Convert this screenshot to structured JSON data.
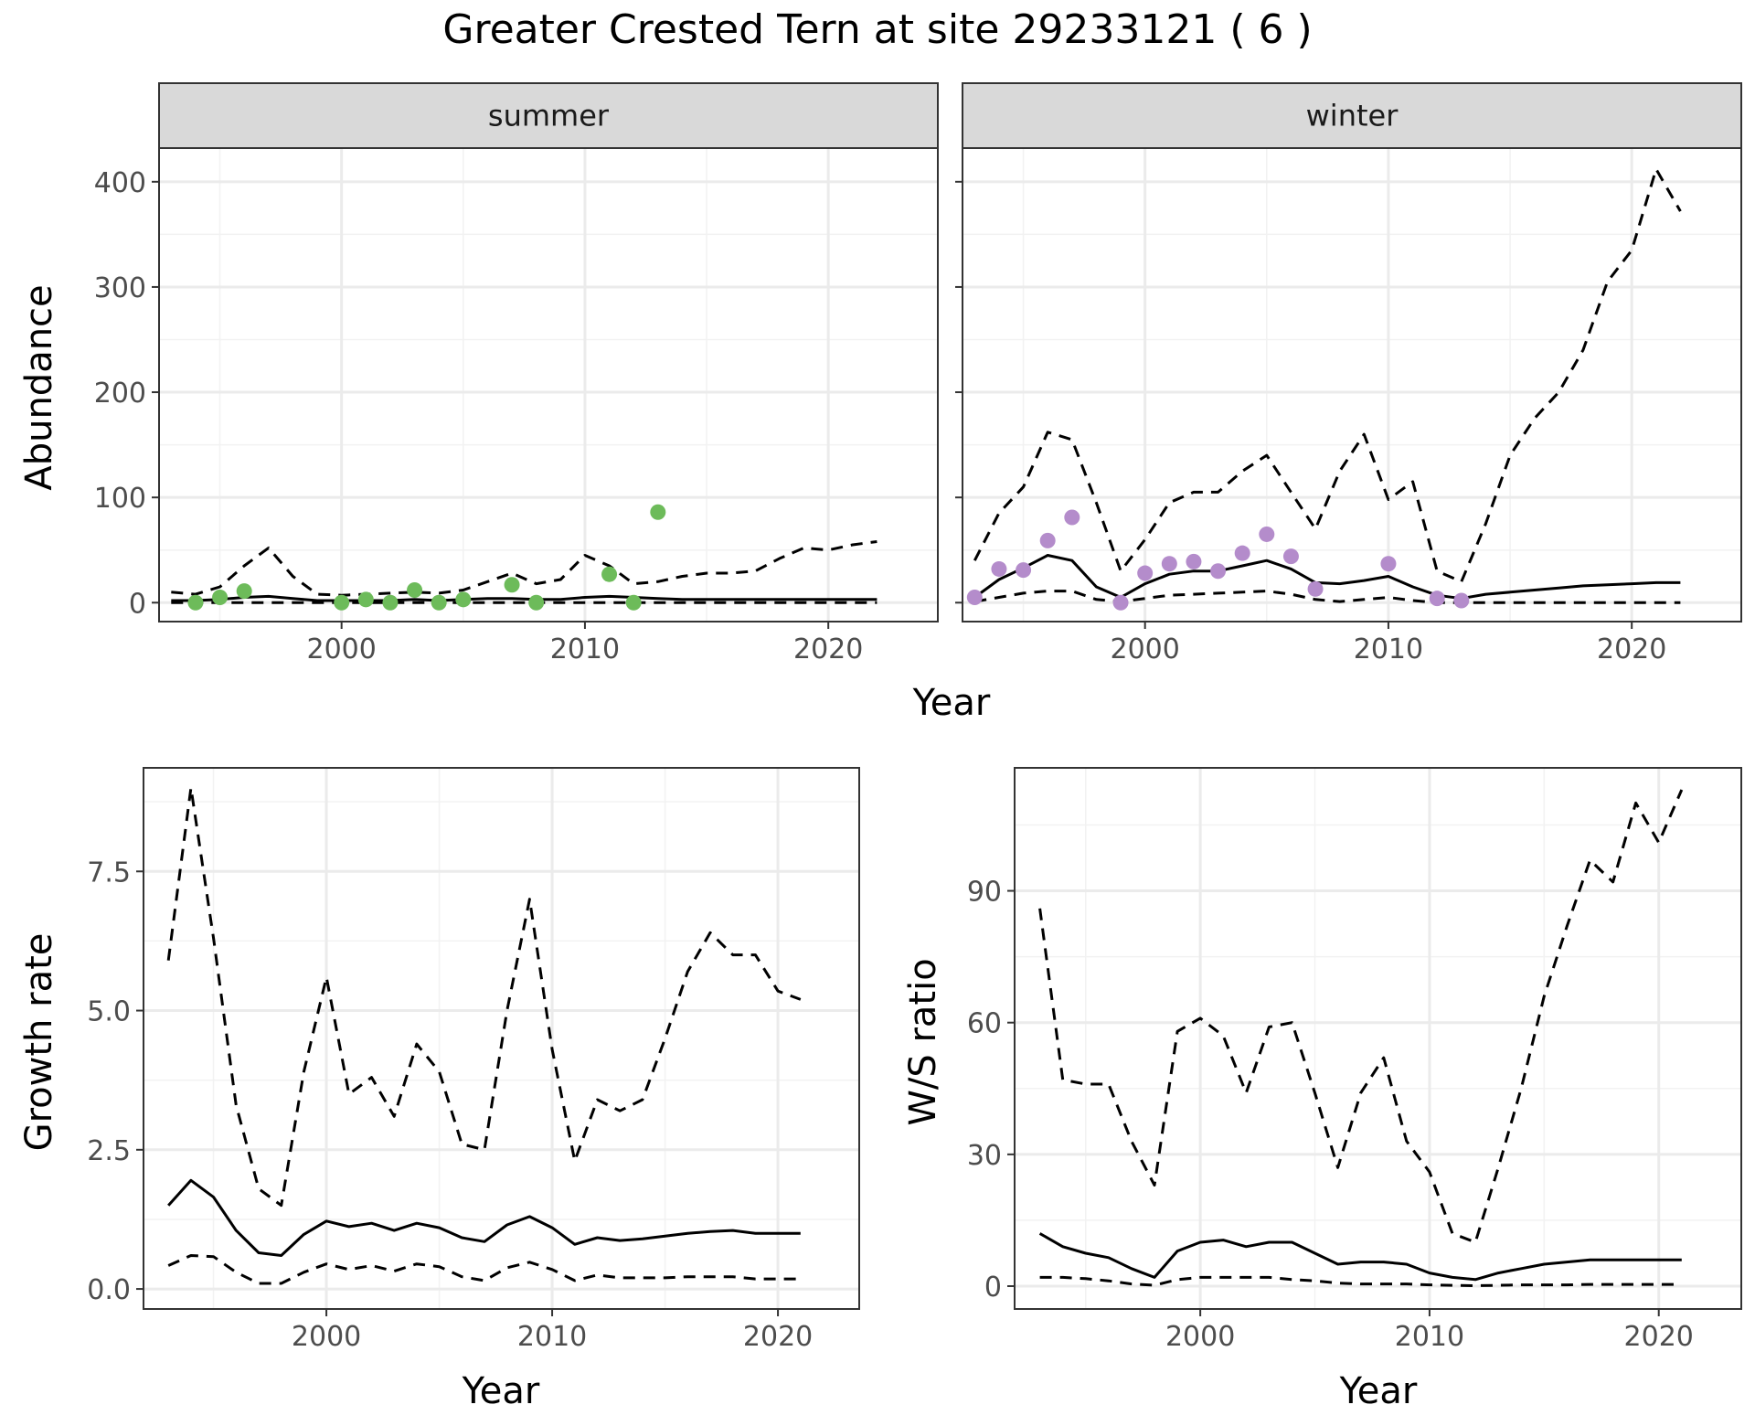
{
  "figure": {
    "title": "Greater Crested Tern at site 29233121 ( 6 )"
  },
  "chart_data": [
    {
      "type": "line",
      "panel": "summer",
      "strip_label": "summer",
      "ylabel": "Abundance",
      "xlabel": "Year",
      "xlim": [
        1992.5,
        2024.5
      ],
      "ylim": [
        -18,
        432
      ],
      "x_ticks": [
        2000,
        2010,
        2020
      ],
      "y_ticks": [
        0,
        100,
        200,
        300,
        400
      ],
      "grid": true,
      "point_color": "#6dbb5a",
      "observed": {
        "x": [
          1994,
          1995,
          1996,
          2000,
          2001,
          2002,
          2003,
          2004,
          2005,
          2007,
          2008,
          2011,
          2012,
          2013
        ],
        "y": [
          0,
          5,
          11,
          0,
          3,
          0,
          12,
          0,
          3,
          17,
          0,
          27,
          0,
          86
        ]
      },
      "series": [
        {
          "style": "solid",
          "x": [
            1993,
            1994,
            1995,
            1996,
            1997,
            1998,
            1999,
            2000,
            2001,
            2002,
            2003,
            2004,
            2005,
            2006,
            2007,
            2008,
            2009,
            2010,
            2011,
            2012,
            2013,
            2014,
            2015,
            2016,
            2017,
            2018,
            2019,
            2020,
            2021,
            2022
          ],
          "y": [
            2,
            2,
            3,
            5,
            6,
            4,
            2,
            2,
            2,
            2,
            3,
            2,
            3,
            4,
            4,
            3,
            3,
            5,
            6,
            5,
            4,
            3,
            3,
            3,
            3,
            3,
            3,
            3,
            3,
            3
          ]
        },
        {
          "style": "dashed",
          "x": [
            1993,
            1994,
            1995,
            1996,
            1997,
            1998,
            1999,
            2000,
            2001,
            2002,
            2003,
            2004,
            2005,
            2006,
            2007,
            2008,
            2009,
            2010,
            2011,
            2012,
            2013,
            2014,
            2015,
            2016,
            2017,
            2018,
            2019,
            2020,
            2021,
            2022
          ],
          "y": [
            10,
            8,
            15,
            35,
            52,
            25,
            8,
            7,
            8,
            9,
            10,
            9,
            12,
            20,
            28,
            18,
            22,
            45,
            35,
            18,
            20,
            25,
            28,
            28,
            30,
            42,
            52,
            50,
            55,
            58
          ]
        },
        {
          "style": "dashed",
          "x": [
            1993,
            1994,
            1995,
            1996,
            1997,
            1998,
            1999,
            2000,
            2001,
            2002,
            2003,
            2004,
            2005,
            2006,
            2007,
            2008,
            2009,
            2010,
            2011,
            2012,
            2013,
            2014,
            2015,
            2016,
            2017,
            2018,
            2019,
            2020,
            2021,
            2022
          ],
          "y": [
            0,
            0,
            0,
            0,
            0,
            0,
            0,
            0,
            0,
            0,
            0,
            0,
            0,
            0,
            0,
            0,
            0,
            0,
            0,
            0,
            0,
            0,
            0,
            0,
            0,
            0,
            0,
            0,
            0,
            0
          ]
        }
      ]
    },
    {
      "type": "line",
      "panel": "winter",
      "strip_label": "winter",
      "ylabel": "",
      "xlabel": "Year",
      "xlim": [
        1992.5,
        2024.5
      ],
      "ylim": [
        -18,
        432
      ],
      "x_ticks": [
        2000,
        2010,
        2020
      ],
      "y_ticks": [
        0,
        100,
        200,
        300,
        400
      ],
      "grid": true,
      "point_color": "#b48ccb",
      "observed": {
        "x": [
          1993,
          1994,
          1995,
          1996,
          1997,
          1999,
          2000,
          2001,
          2002,
          2003,
          2004,
          2005,
          2006,
          2007,
          2010,
          2012,
          2013
        ],
        "y": [
          5,
          32,
          31,
          59,
          81,
          0,
          28,
          37,
          39,
          30,
          47,
          65,
          44,
          13,
          37,
          4,
          2
        ]
      },
      "series": [
        {
          "style": "solid",
          "x": [
            1993,
            1994,
            1995,
            1996,
            1997,
            1998,
            1999,
            2000,
            2001,
            2002,
            2003,
            2004,
            2005,
            2006,
            2007,
            2008,
            2009,
            2010,
            2011,
            2012,
            2013,
            2014,
            2015,
            2016,
            2017,
            2018,
            2019,
            2020,
            2021,
            2022
          ],
          "y": [
            5,
            22,
            33,
            45,
            40,
            15,
            5,
            18,
            27,
            30,
            30,
            35,
            40,
            32,
            19,
            18,
            21,
            25,
            15,
            7,
            4,
            8,
            10,
            12,
            14,
            16,
            17,
            18,
            19,
            19
          ]
        },
        {
          "style": "dashed",
          "x": [
            1993,
            1994,
            1995,
            1996,
            1997,
            1998,
            1999,
            2000,
            2001,
            2002,
            2003,
            2004,
            2005,
            2006,
            2007,
            2008,
            2009,
            2010,
            2011,
            2012,
            2013,
            2014,
            2015,
            2016,
            2017,
            2018,
            2019,
            2020,
            2021,
            2022
          ],
          "y": [
            40,
            85,
            110,
            162,
            155,
            95,
            30,
            60,
            95,
            105,
            105,
            125,
            140,
            105,
            70,
            125,
            160,
            98,
            115,
            30,
            20,
            75,
            140,
            175,
            200,
            240,
            305,
            335,
            412,
            372
          ]
        },
        {
          "style": "dashed",
          "x": [
            1993,
            1994,
            1995,
            1996,
            1997,
            1998,
            1999,
            2000,
            2001,
            2002,
            2003,
            2004,
            2005,
            2006,
            2007,
            2008,
            2009,
            2010,
            2011,
            2012,
            2013,
            2014,
            2015,
            2016,
            2017,
            2018,
            2019,
            2020,
            2021,
            2022
          ],
          "y": [
            1,
            5,
            9,
            11,
            11,
            3,
            1,
            4,
            7,
            8,
            9,
            10,
            11,
            8,
            3,
            1,
            3,
            5,
            2,
            0,
            0,
            0,
            0,
            0,
            0,
            0,
            0,
            0,
            0,
            0
          ]
        }
      ]
    },
    {
      "type": "line",
      "panel": "growth",
      "ylabel": "Growth rate",
      "xlabel": "Year",
      "xlim": [
        1991.9,
        2023.6
      ],
      "ylim": [
        -0.36,
        9.36
      ],
      "x_ticks": [
        2000,
        2010,
        2020
      ],
      "y_ticks": [
        0,
        2.5,
        5,
        7.5
      ],
      "y_tick_labels": [
        "0.0",
        "2.5",
        "5.0",
        "7.5"
      ],
      "grid": true,
      "series": [
        {
          "style": "solid",
          "x": [
            1993,
            1994,
            1995,
            1996,
            1997,
            1998,
            1999,
            2000,
            2001,
            2002,
            2003,
            2004,
            2005,
            2006,
            2007,
            2008,
            2009,
            2010,
            2011,
            2012,
            2013,
            2014,
            2015,
            2016,
            2017,
            2018,
            2019,
            2020,
            2021
          ],
          "y": [
            1.5,
            1.95,
            1.65,
            1.05,
            0.65,
            0.6,
            0.98,
            1.22,
            1.12,
            1.18,
            1.05,
            1.18,
            1.1,
            0.92,
            0.85,
            1.15,
            1.3,
            1.1,
            0.8,
            0.92,
            0.87,
            0.9,
            0.95,
            1.0,
            1.03,
            1.05,
            1.0,
            1.0,
            1.0
          ]
        },
        {
          "style": "dashed",
          "x": [
            1993,
            1994,
            1995,
            1996,
            1997,
            1998,
            1999,
            2000,
            2001,
            2002,
            2003,
            2004,
            2005,
            2006,
            2007,
            2008,
            2009,
            2010,
            2011,
            2012,
            2013,
            2014,
            2015,
            2016,
            2017,
            2018,
            2019,
            2020,
            2021
          ],
          "y": [
            5.9,
            9.0,
            6.3,
            3.3,
            1.8,
            1.5,
            3.9,
            5.6,
            3.5,
            3.8,
            3.1,
            4.4,
            3.9,
            2.6,
            2.5,
            5.0,
            7.0,
            4.3,
            2.3,
            3.4,
            3.2,
            3.4,
            4.5,
            5.7,
            6.4,
            6.0,
            6.0,
            5.35,
            5.2
          ]
        },
        {
          "style": "dashed",
          "x": [
            1993,
            1994,
            1995,
            1996,
            1997,
            1998,
            1999,
            2000,
            2001,
            2002,
            2003,
            2004,
            2005,
            2006,
            2007,
            2008,
            2009,
            2010,
            2011,
            2012,
            2013,
            2014,
            2015,
            2016,
            2017,
            2018,
            2019,
            2020,
            2021
          ],
          "y": [
            0.42,
            0.6,
            0.58,
            0.3,
            0.1,
            0.1,
            0.3,
            0.45,
            0.35,
            0.42,
            0.32,
            0.45,
            0.4,
            0.22,
            0.15,
            0.38,
            0.48,
            0.35,
            0.15,
            0.25,
            0.2,
            0.2,
            0.2,
            0.22,
            0.22,
            0.22,
            0.18,
            0.18,
            0.18
          ]
        }
      ]
    },
    {
      "type": "line",
      "panel": "ratio",
      "ylabel": "W/S ratio",
      "xlabel": "Year",
      "xlim": [
        1991.9,
        2023.6
      ],
      "ylim": [
        -5.2,
        118
      ],
      "x_ticks": [
        2000,
        2010,
        2020
      ],
      "y_ticks": [
        0,
        30,
        60,
        90
      ],
      "grid": true,
      "series": [
        {
          "style": "solid",
          "x": [
            1993,
            1994,
            1995,
            1996,
            1997,
            1998,
            1999,
            2000,
            2001,
            2002,
            2003,
            2004,
            2005,
            2006,
            2007,
            2008,
            2009,
            2010,
            2011,
            2012,
            2013,
            2014,
            2015,
            2016,
            2017,
            2018,
            2019,
            2020,
            2021
          ],
          "y": [
            12,
            9,
            7.5,
            6.5,
            4,
            2,
            8,
            10,
            10.5,
            9,
            10,
            10,
            7.5,
            5,
            5.5,
            5.5,
            5,
            3,
            2,
            1.5,
            3,
            4,
            5,
            5.5,
            6,
            6,
            6,
            6,
            6
          ]
        },
        {
          "style": "dashed",
          "x": [
            1993,
            1994,
            1995,
            1996,
            1997,
            1998,
            1999,
            2000,
            2001,
            2002,
            2003,
            2004,
            2005,
            2006,
            2007,
            2008,
            2009,
            2010,
            2011,
            2012,
            2013,
            2014,
            2015,
            2016,
            2017,
            2018,
            2019,
            2020,
            2021
          ],
          "y": [
            86,
            47,
            46,
            46,
            33,
            23,
            58,
            61,
            57,
            44,
            59,
            60,
            44,
            27,
            44,
            52,
            33,
            26,
            12,
            10,
            27,
            45,
            66,
            82,
            97,
            92,
            110,
            101,
            113
          ]
        },
        {
          "style": "dashed",
          "x": [
            1993,
            1994,
            1995,
            1996,
            1997,
            1998,
            1999,
            2000,
            2001,
            2002,
            2003,
            2004,
            2005,
            2006,
            2007,
            2008,
            2009,
            2010,
            2011,
            2012,
            2013,
            2014,
            2015,
            2016,
            2017,
            2018,
            2019,
            2020,
            2021
          ],
          "y": [
            2,
            2,
            1.7,
            1.2,
            0.5,
            0.2,
            1.5,
            2,
            2,
            2,
            2,
            1.5,
            1.2,
            0.7,
            0.5,
            0.5,
            0.5,
            0.3,
            0.2,
            0.1,
            0.2,
            0.3,
            0.3,
            0.3,
            0.4,
            0.4,
            0.4,
            0.4,
            0.4
          ]
        }
      ]
    }
  ]
}
